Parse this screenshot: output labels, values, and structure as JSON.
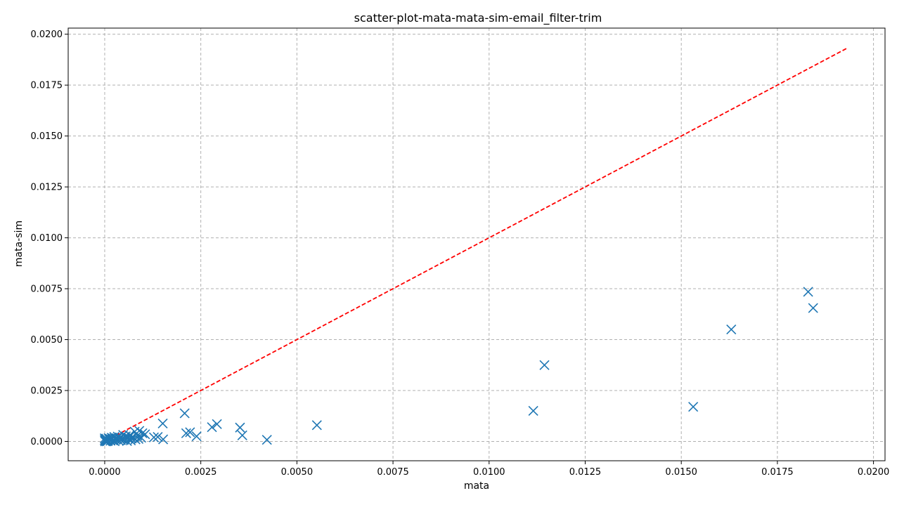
{
  "chart_data": {
    "type": "scatter",
    "title": "scatter-plot-mata-mata-sim-email_filter-trim",
    "xlabel": "mata",
    "ylabel": "mata-sim",
    "xlim": [
      -0.00095,
      0.0203
    ],
    "ylim": [
      -0.00095,
      0.0203
    ],
    "xticks": [
      0.0,
      0.0025,
      0.005,
      0.0075,
      0.01,
      0.0125,
      0.015,
      0.0175,
      0.02
    ],
    "xtick_labels": [
      "0.0000",
      "0.0025",
      "0.0050",
      "0.0075",
      "0.0100",
      "0.0125",
      "0.0150",
      "0.0175",
      "0.0200"
    ],
    "yticks": [
      0.0,
      0.0025,
      0.005,
      0.0075,
      0.01,
      0.0125,
      0.015,
      0.0175,
      0.02
    ],
    "ytick_labels": [
      "0.0000",
      "0.0025",
      "0.0050",
      "0.0075",
      "0.0100",
      "0.0125",
      "0.0150",
      "0.0175",
      "0.0200"
    ],
    "grid": true,
    "marker_color": "#1f77b4",
    "reference_line": {
      "style": "dashed",
      "color": "#ff0000",
      "from": [
        0.0,
        0.0
      ],
      "to": [
        0.0193,
        0.0193
      ]
    },
    "points": [
      [
        0.0183,
        0.00735
      ],
      [
        0.01843,
        0.00655
      ],
      [
        0.0163,
        0.0055
      ],
      [
        0.01531,
        0.0017
      ],
      [
        0.01144,
        0.00375
      ],
      [
        0.01115,
        0.0015
      ],
      [
        0.00552,
        0.0008
      ],
      [
        0.00422,
        8e-05
      ],
      [
        0.00358,
        0.0003
      ],
      [
        0.00352,
        0.00068
      ],
      [
        0.00292,
        0.00085
      ],
      [
        0.00279,
        0.0007
      ],
      [
        0.00239,
        0.00025
      ],
      [
        0.00222,
        0.00045
      ],
      [
        0.00212,
        0.0004
      ],
      [
        0.00208,
        0.00138
      ],
      [
        0.00152,
        0.0001
      ],
      [
        0.00151,
        0.00088
      ],
      [
        0.00138,
        0.00022
      ],
      [
        0.00128,
        0.0002
      ],
      [
        0.00105,
        0.00035
      ],
      [
        0.00098,
        0.0004
      ],
      [
        0.00095,
        0.00018
      ],
      [
        0.0009,
        0.00052
      ],
      [
        0.00085,
        0.00028
      ],
      [
        0.0008,
        0.0001
      ],
      [
        0.00078,
        0.00048
      ],
      [
        0.00072,
        0.00022
      ],
      [
        0.00068,
        5e-05
      ],
      [
        0.00065,
        0.0003
      ],
      [
        0.0006,
        0.00015
      ],
      [
        0.00055,
        0.00025
      ],
      [
        0.0005,
        8e-05
      ],
      [
        0.00048,
        0.00032
      ],
      [
        0.00045,
        0.00012
      ],
      [
        0.0004,
        0.0002
      ],
      [
        0.00036,
        5e-05
      ],
      [
        0.00032,
        0.00015
      ],
      [
        0.00028,
        0.0001
      ],
      [
        0.00025,
        0.00022
      ],
      [
        0.00022,
        5e-05
      ],
      [
        0.0002,
        0.00012
      ],
      [
        0.00018,
        0.00018
      ],
      [
        0.00015,
        3e-05
      ],
      [
        0.00012,
        0.0001
      ],
      [
        0.0001,
        0.00016
      ],
      [
        8e-05,
        2e-05
      ],
      [
        6e-05,
        8e-05
      ],
      [
        4e-05,
        0.00014
      ],
      [
        3e-05,
        4e-05
      ],
      [
        2e-05,
        0.0001
      ],
      [
        1e-05,
        0.0
      ],
      [
        0.0,
        6e-05
      ],
      [
        0.0,
        0.00015
      ],
      [
        5e-05,
        0.0
      ],
      [
        9e-05,
        5e-05
      ],
      [
        0.00014,
        0.00013
      ],
      [
        0.00026,
        1e-05
      ],
      [
        0.00034,
        0.00024
      ],
      [
        0.00042,
        6e-05
      ],
      [
        0.00058,
        2e-05
      ],
      [
        0.00062,
        0.00019
      ],
      [
        0.0007,
        0.00014
      ],
      [
        0.00088,
        0.00012
      ]
    ]
  }
}
